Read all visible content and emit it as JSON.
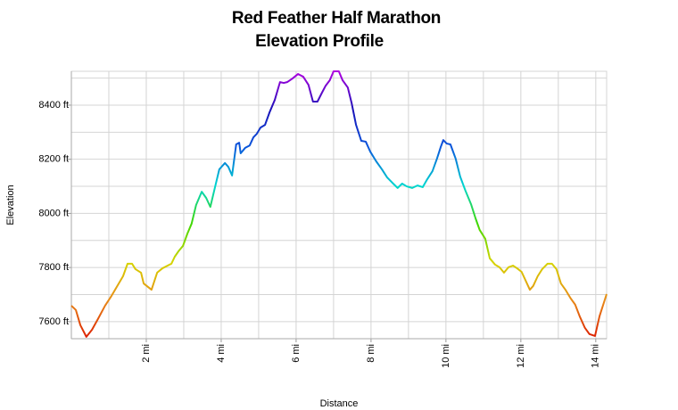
{
  "chart_data": {
    "type": "line",
    "title": "Red Feather Half Marathon",
    "subtitle": "Elevation Profile",
    "x_label": "Distance",
    "y_label": "Elevation",
    "xlim": [
      0,
      14.29
    ],
    "ylim": [
      7537,
      8525
    ],
    "xticks": [
      {
        "value": 2,
        "label": "2 mi"
      },
      {
        "value": 4,
        "label": "4 mi"
      },
      {
        "value": 6,
        "label": "6 mi"
      },
      {
        "value": 8,
        "label": "8 mi"
      },
      {
        "value": 10,
        "label": "10 mi"
      },
      {
        "value": 12,
        "label": "12 mi"
      },
      {
        "value": 14,
        "label": "14 mi"
      }
    ],
    "yticks": [
      {
        "value": 7600,
        "label": "7600 ft"
      },
      {
        "value": 7800,
        "label": "7800 ft"
      },
      {
        "value": 8000,
        "label": "8000 ft"
      },
      {
        "value": 8200,
        "label": "8200 ft"
      },
      {
        "value": 8400,
        "label": "8400 ft"
      }
    ],
    "grid": true,
    "minor_grid": true,
    "colorscale": [
      "#dc1c00",
      "#e88a18",
      "#d6d400",
      "#40d800",
      "#00d6d0",
      "#0a58dc",
      "#1a10b8",
      "#b000e0"
    ],
    "x": [
      0.0,
      0.12,
      0.24,
      0.4,
      0.55,
      0.71,
      0.9,
      1.07,
      1.24,
      1.38,
      1.5,
      1.62,
      1.71,
      1.86,
      1.93,
      2.14,
      2.29,
      2.43,
      2.57,
      2.67,
      2.76,
      2.86,
      2.98,
      3.1,
      3.21,
      3.33,
      3.48,
      3.6,
      3.71,
      3.83,
      3.95,
      4.1,
      4.19,
      4.29,
      4.4,
      4.48,
      4.52,
      4.64,
      4.76,
      4.86,
      4.95,
      5.05,
      5.17,
      5.29,
      5.43,
      5.57,
      5.67,
      5.76,
      5.9,
      6.05,
      6.19,
      6.33,
      6.45,
      6.57,
      6.69,
      6.79,
      6.9,
      7.0,
      7.14,
      7.24,
      7.38,
      7.48,
      7.6,
      7.74,
      7.86,
      7.98,
      8.14,
      8.29,
      8.43,
      8.57,
      8.71,
      8.83,
      8.95,
      9.1,
      9.24,
      9.38,
      9.5,
      9.64,
      9.76,
      9.86,
      9.93,
      10.02,
      10.12,
      10.26,
      10.38,
      10.52,
      10.67,
      10.79,
      10.9,
      11.05,
      11.17,
      11.31,
      11.43,
      11.55,
      11.67,
      11.79,
      11.9,
      12.02,
      12.14,
      12.24,
      12.33,
      12.45,
      12.57,
      12.71,
      12.83,
      12.95,
      13.07,
      13.19,
      13.33,
      13.45,
      13.57,
      13.71,
      13.83,
      13.98,
      14.1,
      14.29
    ],
    "values": [
      7659,
      7643,
      7587,
      7544,
      7570,
      7610,
      7659,
      7695,
      7735,
      7768,
      7814,
      7814,
      7794,
      7781,
      7741,
      7718,
      7781,
      7797,
      7807,
      7814,
      7840,
      7860,
      7880,
      7926,
      7962,
      8031,
      8080,
      8057,
      8024,
      8094,
      8163,
      8186,
      8172,
      8140,
      8255,
      8261,
      8222,
      8242,
      8251,
      8281,
      8294,
      8317,
      8327,
      8373,
      8419,
      8485,
      8482,
      8485,
      8498,
      8515,
      8505,
      8475,
      8413,
      8413,
      8446,
      8472,
      8492,
      8525,
      8525,
      8492,
      8465,
      8409,
      8327,
      8268,
      8265,
      8228,
      8192,
      8163,
      8133,
      8113,
      8094,
      8110,
      8100,
      8094,
      8103,
      8097,
      8126,
      8156,
      8202,
      8245,
      8271,
      8258,
      8255,
      8202,
      8136,
      8084,
      8034,
      7982,
      7939,
      7906,
      7834,
      7811,
      7801,
      7781,
      7801,
      7807,
      7797,
      7784,
      7748,
      7718,
      7732,
      7768,
      7794,
      7814,
      7814,
      7794,
      7741,
      7718,
      7686,
      7663,
      7620,
      7577,
      7554,
      7547,
      7620,
      7702
    ]
  }
}
